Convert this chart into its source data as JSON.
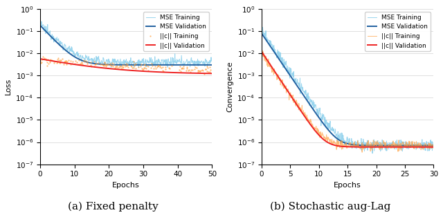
{
  "left": {
    "caption": "(a) Fixed penalty",
    "xlabel": "Epochs",
    "ylabel": "Loss",
    "xlim": [
      0,
      50
    ],
    "ylim_log": [
      -7,
      0
    ],
    "x_ticks": [
      0,
      10,
      20,
      30,
      40,
      50
    ],
    "legend": [
      "MSE Training",
      "MSE Validation",
      "||c|| Training",
      "||c|| Validation"
    ],
    "colors": {
      "mse_train": "#87CEEB",
      "mse_val": "#2060A0",
      "c_train": "#FFA040",
      "c_val": "#EE2222"
    }
  },
  "right": {
    "caption": "(b) Stochastic aug-Lag",
    "xlabel": "Epochs",
    "ylabel": "Convergence",
    "xlim": [
      0,
      30
    ],
    "ylim_log": [
      -7,
      0
    ],
    "x_ticks": [
      0,
      5,
      10,
      15,
      20,
      25,
      30
    ],
    "legend": [
      "MSE Training",
      "MSE Validation",
      "||c|| Training",
      "||c|| Validation"
    ],
    "colors": {
      "mse_train": "#87CEEB",
      "mse_val": "#2060A0",
      "c_train": "#FFA040",
      "c_val": "#EE2222"
    }
  }
}
